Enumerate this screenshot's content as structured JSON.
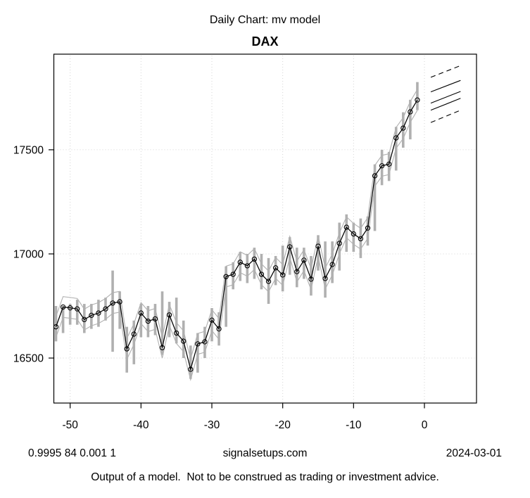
{
  "header": {
    "subtitle": "Daily Chart: mv model",
    "title": "DAX"
  },
  "footer": {
    "stats": "0.9995 84 0.001 1",
    "site": "signalsetups.com",
    "date": "2024-03-01",
    "disclaimer": "Output of a model.  Not to be construed as trading or investment advice."
  },
  "chart_data": {
    "type": "line",
    "title": "DAX",
    "subtitle": "Daily Chart: mv model",
    "xlabel": "",
    "ylabel": "",
    "grid": "dotted",
    "legend": "none",
    "xlim": [
      -52.3,
      7.35
    ],
    "ylim": [
      16284,
      17959
    ],
    "xticks": [
      -50,
      -40,
      -30,
      -20,
      -10,
      0
    ],
    "yticks": [
      16500,
      17000,
      17500
    ],
    "x": [
      -52,
      -51,
      -50,
      -49,
      -48,
      -47,
      -46,
      -45,
      -44,
      -43,
      -42,
      -41,
      -40,
      -39,
      -38,
      -37,
      -36,
      -35,
      -34,
      -33,
      -32,
      -31,
      -30,
      -29,
      -28,
      -27,
      -26,
      -25,
      -24,
      -23,
      -22,
      -21,
      -20,
      -19,
      -18,
      -17,
      -16,
      -15,
      -14,
      -13,
      -12,
      -11,
      -10,
      -9,
      -8,
      -7,
      -6,
      -5,
      -4,
      -3,
      -2,
      -1
    ],
    "series": [
      {
        "name": "model value (black line with points)",
        "values": [
          16650,
          16745,
          16741,
          16736,
          16685,
          16705,
          16716,
          16736,
          16764,
          16770,
          16544,
          16615,
          16716,
          16677,
          16688,
          16550,
          16707,
          16620,
          16581,
          16446,
          16568,
          16578,
          16682,
          16640,
          16891,
          16902,
          16960,
          16943,
          16975,
          16902,
          16868,
          16933,
          16899,
          17034,
          16915,
          16970,
          16879,
          17037,
          16882,
          16949,
          17051,
          17128,
          17096,
          17073,
          17124,
          17375,
          17423,
          17431,
          17557,
          17604,
          17682,
          17739
        ]
      }
    ],
    "band_offset": 50,
    "bars": {
      "name": "daily high-low range (gray bars)",
      "high": [
        16750,
        16750,
        16760,
        16780,
        16760,
        16760,
        16780,
        16790,
        16920,
        16820,
        16650,
        16680,
        16760,
        16750,
        16760,
        16820,
        16770,
        16790,
        16680,
        16560,
        16620,
        16650,
        16740,
        16720,
        16940,
        16960,
        17010,
        17000,
        17030,
        17000,
        16980,
        16990,
        17040,
        17080,
        17030,
        17030,
        16990,
        17090,
        17060,
        17060,
        17150,
        17190,
        17150,
        17170,
        17180,
        17430,
        17500,
        17490,
        17610,
        17680,
        17740,
        17825
      ],
      "low": [
        16580,
        16620,
        16660,
        16660,
        16620,
        16640,
        16650,
        16680,
        16530,
        16640,
        16430,
        16470,
        16600,
        16600,
        16610,
        16515,
        16600,
        16570,
        16500,
        16400,
        16430,
        16500,
        16580,
        16560,
        16650,
        16830,
        16870,
        16860,
        16880,
        16830,
        16760,
        16850,
        16820,
        16900,
        16840,
        16880,
        16800,
        16920,
        16790,
        16860,
        16920,
        17010,
        17010,
        16980,
        17040,
        17110,
        17330,
        17350,
        17400,
        17510,
        17550,
        17690
      ]
    },
    "forecast_fan": {
      "name": "model forecast fan",
      "x_start": 0.9,
      "x_end": 5.1,
      "lines": [
        {
          "style": "dashed",
          "start": 17848,
          "end": 17904
        },
        {
          "style": "solid",
          "start": 17778,
          "end": 17833
        },
        {
          "style": "solid",
          "start": 17724,
          "end": 17780
        },
        {
          "style": "solid",
          "start": 17690,
          "end": 17747
        },
        {
          "style": "dashed",
          "start": 17631,
          "end": 17690
        }
      ]
    },
    "colors": {
      "line": "#000000",
      "band": "#b0b0b0",
      "bars": "#b0b0b0",
      "grid": "#d4d4d4",
      "text": "#000000",
      "background": "#ffffff"
    }
  }
}
